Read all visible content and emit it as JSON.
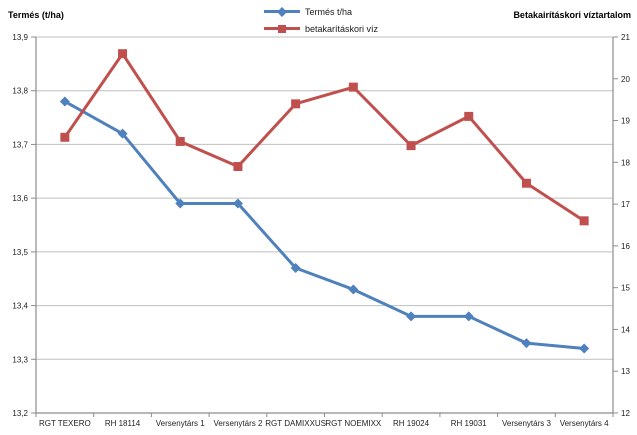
{
  "legend": {
    "items": [
      {
        "label": "Termés t/ha",
        "color": "#4F81BD",
        "marker": "diamond"
      },
      {
        "label": "betakarításkori víz",
        "color": "#C0504D",
        "marker": "square"
      }
    ]
  },
  "chart_data": {
    "type": "line",
    "title": "",
    "categories": [
      "RGT TEXERO",
      "RH 18114",
      "Versenytárs 1",
      "Versenytárs 2",
      "RGT DAMIXXUS",
      "RGT NOEMIXX",
      "RH 19024",
      "RH 19031",
      "Versenytárs 3",
      "Versenytárs 4"
    ],
    "series": [
      {
        "name": "Termés t/ha",
        "axis": "left",
        "color": "#4F81BD",
        "marker": "diamond",
        "values": [
          13.78,
          13.72,
          13.59,
          13.59,
          13.47,
          13.43,
          13.38,
          13.38,
          13.33,
          13.32
        ]
      },
      {
        "name": "betakarításkori víz",
        "axis": "right",
        "color": "#C0504D",
        "marker": "square",
        "values": [
          18.6,
          20.6,
          18.5,
          17.9,
          19.4,
          19.8,
          18.4,
          19.1,
          17.5,
          16.6
        ]
      }
    ],
    "left_axis": {
      "title": "Termés (t/ha)",
      "min": 13.2,
      "max": 13.9,
      "step": 0.1,
      "ticks": [
        "13,9",
        "13,8",
        "13,7",
        "13,6",
        "13,5",
        "13,4",
        "13,3",
        "13,2"
      ]
    },
    "right_axis": {
      "title": "Betakairításkori víztartalom",
      "min": 12,
      "max": 21,
      "step": 1,
      "ticks": [
        "21",
        "20",
        "19",
        "18",
        "17",
        "16",
        "15",
        "14",
        "13",
        "12"
      ]
    },
    "grid": true,
    "legend_position": "top-center",
    "colors": {
      "grid": "#BFBFBF",
      "axis": "#8C8C8C",
      "tick_text": "#1f1f1f"
    }
  }
}
